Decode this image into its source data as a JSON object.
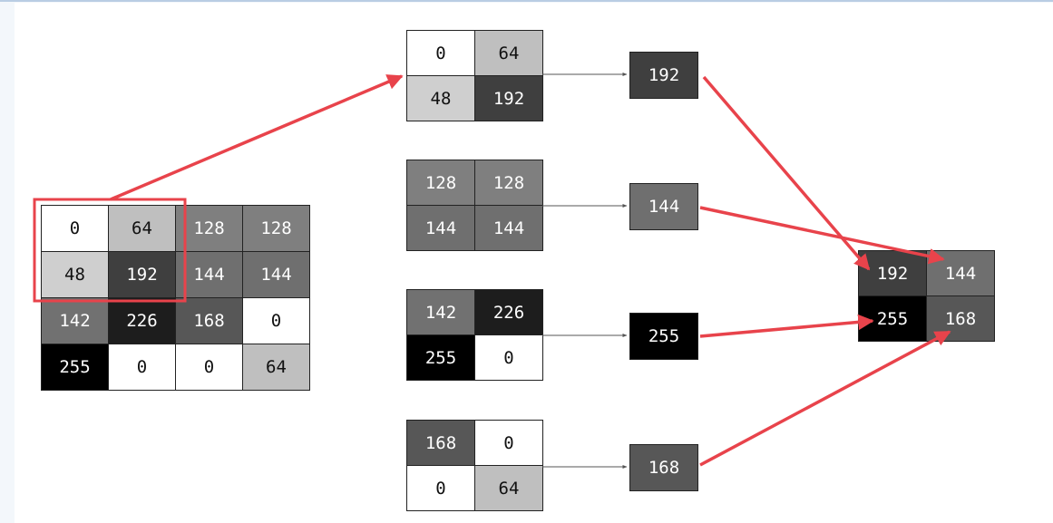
{
  "input": {
    "rows": [
      [
        "0",
        "64",
        "128",
        "128"
      ],
      [
        "48",
        "192",
        "144",
        "144"
      ],
      [
        "142",
        "226",
        "168",
        "0"
      ],
      [
        "255",
        "0",
        "0",
        "64"
      ]
    ]
  },
  "windows": [
    {
      "cells": [
        [
          "0",
          "64"
        ],
        [
          "48",
          "192"
        ]
      ],
      "max": "192"
    },
    {
      "cells": [
        [
          "128",
          "128"
        ],
        [
          "144",
          "144"
        ]
      ],
      "max": "144"
    },
    {
      "cells": [
        [
          "142",
          "226"
        ],
        [
          "255",
          "0"
        ]
      ],
      "max": "255"
    },
    {
      "cells": [
        [
          "168",
          "0"
        ],
        [
          "0",
          "64"
        ]
      ],
      "max": "168"
    }
  ],
  "output": {
    "rows": [
      [
        "192",
        "144"
      ],
      [
        "255",
        "168"
      ]
    ]
  },
  "colors": {
    "arrow_red": "#e8434b",
    "connector_gray": "#555555",
    "border": "#222222"
  }
}
